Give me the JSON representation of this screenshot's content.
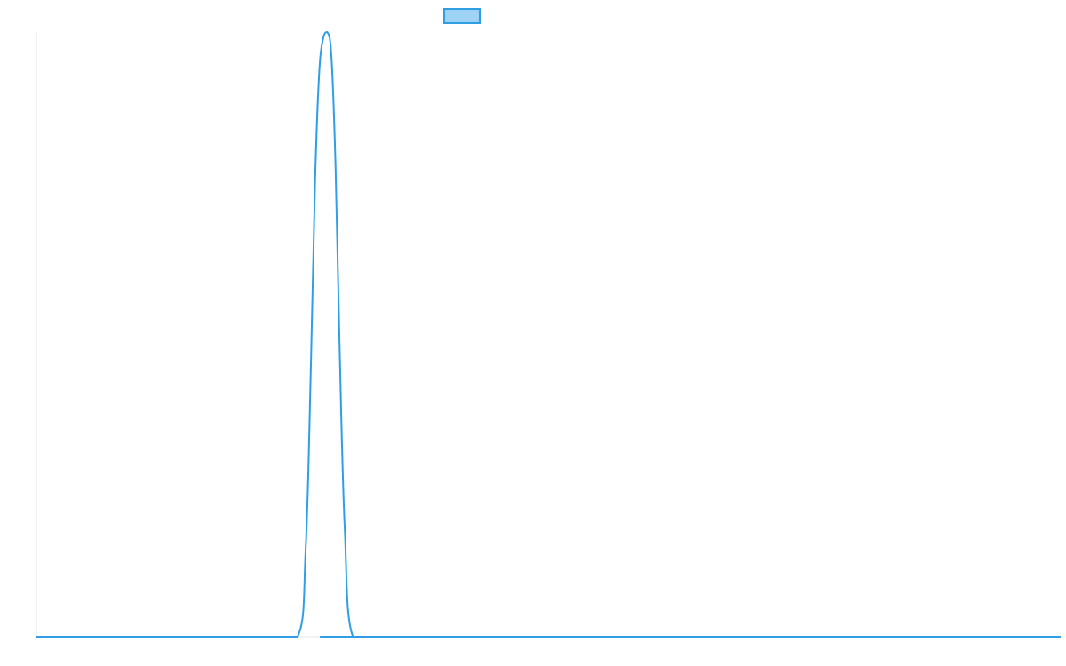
{
  "chart_data": {
    "type": "line",
    "title": "",
    "xlabel": "",
    "ylabel": "",
    "legend": {
      "placement": "top-center",
      "swatch_fill": "#9fd3f5",
      "swatch_stroke": "#2f9ee6"
    },
    "grid": false,
    "xlim": [
      0,
      100
    ],
    "ylim": [
      0,
      1
    ],
    "series": [
      {
        "color": "#2f9ee6",
        "x": [
          0,
          22,
          25.5,
          26.3,
          26.8,
          27.2,
          27.6,
          28.0,
          28.4,
          28.8,
          29.2,
          29.6,
          30.1,
          30.9,
          34,
          100
        ],
        "y": [
          0,
          0,
          0,
          0.15,
          0.45,
          0.75,
          0.93,
          0.99,
          1.0,
          0.96,
          0.78,
          0.48,
          0.18,
          0,
          0,
          0
        ]
      }
    ]
  }
}
